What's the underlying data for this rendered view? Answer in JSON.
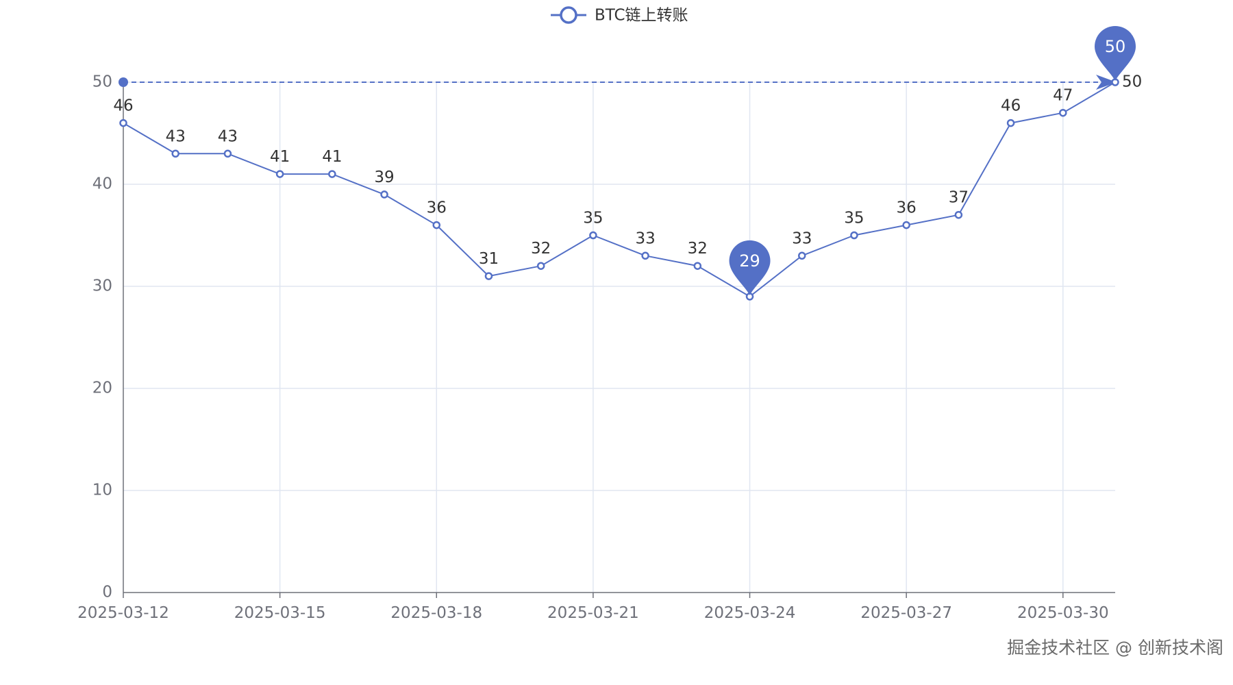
{
  "chart_data": {
    "type": "line",
    "legend": {
      "label": "BTC链上转账",
      "position": "top-center"
    },
    "x": [
      "2025-03-12",
      "2025-03-13",
      "2025-03-14",
      "2025-03-15",
      "2025-03-16",
      "2025-03-17",
      "2025-03-18",
      "2025-03-19",
      "2025-03-20",
      "2025-03-21",
      "2025-03-22",
      "2025-03-23",
      "2025-03-24",
      "2025-03-25",
      "2025-03-26",
      "2025-03-27",
      "2025-03-28",
      "2025-03-29",
      "2025-03-30",
      "2025-03-31"
    ],
    "x_tick_labels": [
      "2025-03-12",
      "2025-03-15",
      "2025-03-18",
      "2025-03-21",
      "2025-03-24",
      "2025-03-27",
      "2025-03-30"
    ],
    "series": [
      {
        "name": "BTC链上转账",
        "values": [
          46,
          43,
          43,
          41,
          41,
          39,
          36,
          31,
          32,
          35,
          33,
          32,
          29,
          33,
          35,
          36,
          37,
          46,
          47,
          50
        ]
      }
    ],
    "y_ticks": [
      0,
      10,
      20,
      30,
      40,
      50
    ],
    "ylim": [
      0,
      50
    ],
    "grid": true,
    "mark_points": [
      {
        "type": "max",
        "x": "2025-03-31",
        "value": 50,
        "label": "50"
      },
      {
        "type": "min",
        "x": "2025-03-24",
        "value": 29,
        "label": "29"
      }
    ],
    "mark_line": {
      "type": "max",
      "value": 50,
      "label": "50",
      "style": "dashed"
    },
    "colors": {
      "series": "#5470c6",
      "grid": "#e0e6f1",
      "axis": "#6e7079",
      "label": "#333333",
      "marker_text": "#ffffff"
    }
  },
  "watermark": "掘金技术社区 @ 创新技术阁"
}
